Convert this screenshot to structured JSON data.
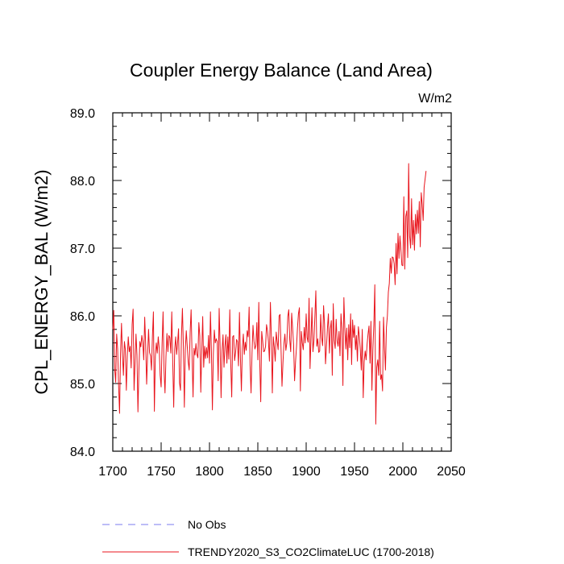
{
  "chart_data": {
    "type": "line",
    "title": "Coupler Energy Balance (Land Area)",
    "units": "W/m2",
    "ylabel": "CPL_ENERGY_BAL  (W/m2)",
    "xlabel": "",
    "xlim": [
      1700,
      2050
    ],
    "ylim": [
      84.0,
      89.0
    ],
    "x_ticks": [
      1700,
      1750,
      1800,
      1850,
      1900,
      1950,
      2000,
      2050
    ],
    "x_tick_labels": [
      "1700",
      "1750",
      "1800",
      "1850",
      "1900",
      "1950",
      "2000",
      "2050"
    ],
    "y_ticks": [
      84.0,
      85.0,
      86.0,
      87.0,
      88.0,
      89.0
    ],
    "y_tick_labels": [
      "84.0",
      "85.0",
      "86.0",
      "87.0",
      "88.0",
      "89.0"
    ],
    "legend": [
      {
        "label": "No Obs",
        "color": "#7b7bef",
        "style": "dashed"
      },
      {
        "label": "TRENDY2020_S3_CO2ClimateLUC (1700-2018)",
        "color": "#e8141c",
        "style": "solid"
      }
    ],
    "series": [
      {
        "name": "TRENDY2020_S3_CO2ClimateLUC (1700-2018)",
        "color": "#e8141c",
        "x_start": 1700,
        "x_step": 1,
        "values": [
          85.8,
          86.08,
          85.2,
          85.02,
          85.73,
          85.51,
          84.98,
          84.56,
          85.44,
          85.89,
          85.42,
          85.12,
          85.62,
          85.5,
          84.9,
          85.4,
          85.69,
          85.47,
          85.55,
          85.23,
          85.87,
          86.1,
          84.9,
          85.3,
          85.73,
          85.42,
          84.58,
          85.2,
          85.62,
          85.54,
          85.71,
          85.61,
          85.35,
          85.98,
          85.58,
          84.99,
          85.42,
          85.8,
          85.46,
          85.41,
          85.2,
          85.7,
          86.06,
          84.59,
          85.4,
          85.6,
          85.45,
          85.69,
          85.52,
          85.12,
          84.95,
          85.6,
          86.06,
          85.19,
          84.86,
          85.4,
          85.74,
          85.47,
          85.71,
          85.68,
          85.45,
          86.06,
          85.32,
          84.65,
          85.5,
          85.69,
          85.43,
          85.6,
          85.81,
          85.01,
          84.9,
          85.7,
          86.11,
          85.55,
          84.65,
          85.5,
          85.78,
          85.55,
          85.32,
          85.2,
          85.76,
          86.09,
          85.4,
          84.8,
          85.52,
          85.42,
          85.59,
          85.43,
          85.38,
          85.9,
          85.7,
          84.87,
          85.46,
          85.99,
          85.24,
          85.55,
          85.37,
          85.53,
          85.38,
          85.71,
          85.3,
          86.06,
          85.48,
          84.61,
          85.44,
          85.79,
          85.6,
          85.66,
          85.62,
          85.04,
          86.11,
          85.55,
          84.79,
          85.48,
          85.72,
          85.24,
          85.55,
          85.72,
          85.3,
          85.69,
          85.36,
          86.09,
          85.29,
          84.8,
          85.69,
          85.71,
          85.34,
          85.46,
          85.65,
          85.62,
          85.26,
          86.05,
          85.38,
          84.89,
          85.52,
          85.73,
          85.43,
          85.61,
          85.49,
          85.78,
          85.69,
          86.13,
          85.27,
          84.86,
          85.45,
          85.86,
          85.63,
          85.51,
          85.56,
          85.9,
          85.35,
          86.2,
          85.31,
          84.73,
          85.77,
          85.63,
          85.47,
          85.48,
          85.55,
          85.87,
          85.78,
          85.62,
          85.33,
          86.2,
          85.68,
          84.86,
          85.69,
          85.54,
          85.33,
          85.76,
          85.62,
          85.5,
          86.0,
          86.02,
          85.51,
          84.96,
          85.31,
          85.59,
          85.73,
          85.49,
          85.6,
          85.99,
          86.09,
          85.65,
          85.47,
          86.04,
          85.82,
          85.57,
          85.04,
          85.32,
          85.54,
          85.82,
          86.03,
          86.12,
          84.89,
          85.77,
          85.6,
          85.5,
          85.83,
          85.6,
          86.03,
          85.68,
          85.61,
          86.26,
          85.22,
          85.67,
          86.12,
          85.47,
          85.63,
          85.98,
          86.37,
          85.55,
          85.66,
          85.46,
          85.48,
          86.02,
          85.68,
          85.56,
          86.15,
          85.87,
          85.29,
          85.54,
          85.82,
          86.03,
          85.45,
          85.81,
          85.93,
          85.12,
          86.18,
          85.64,
          85.52,
          85.95,
          85.63,
          85.55,
          85.77,
          85.41,
          86.03,
          85.81,
          84.97,
          86.27,
          85.82,
          85.51,
          85.82,
          85.35,
          85.87,
          85.53,
          86.03,
          85.28,
          85.94,
          85.68,
          85.86,
          85.5,
          85.71,
          85.33,
          85.84,
          85.7,
          85.5,
          85.2,
          85.8,
          84.79,
          85.32,
          85.48,
          85.35,
          85.58,
          85.73,
          85.85,
          85.3,
          85.92,
          84.9,
          85.5,
          85.88,
          86.46,
          84.4,
          85.24,
          85.35,
          85.12,
          85.92,
          85.06,
          85.13,
          84.89,
          85.98,
          85.55,
          85.2,
          85.83,
          86.0,
          86.35,
          86.48,
          86.85,
          86.63,
          86.87,
          86.86,
          86.77,
          86.46,
          87.07,
          86.62,
          87.22,
          86.85,
          87.18,
          86.97,
          86.75,
          86.74,
          87.76,
          86.69,
          87.47,
          87.55,
          86.86,
          88.25,
          87.18,
          87.0,
          87.73,
          87.05,
          87.41,
          86.97,
          87.5,
          87.21,
          87.56,
          87.22,
          87.69,
          87.02,
          87.82,
          87.65,
          87.41,
          87.9,
          88.02,
          88.14
        ]
      },
      {
        "name": "No Obs",
        "color": "#7b7bef",
        "values": []
      }
    ]
  }
}
